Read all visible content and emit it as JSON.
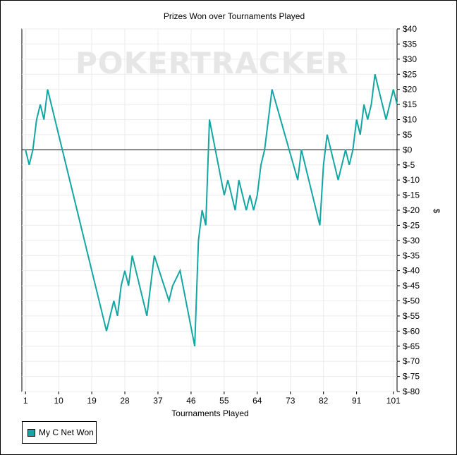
{
  "chart_data": {
    "type": "line",
    "title": "Prizes Won over Tournaments Played",
    "xlabel": "Tournaments Played",
    "ylabel": "$",
    "xlim": [
      0,
      102
    ],
    "ylim": [
      -80,
      40
    ],
    "grid": true,
    "legend_position": "bottom-left",
    "watermark": "POKERTRACKER",
    "x_ticks": [
      1,
      10,
      19,
      28,
      37,
      46,
      55,
      64,
      73,
      82,
      91,
      101
    ],
    "y_ticks": [
      40,
      35,
      30,
      25,
      20,
      15,
      10,
      5,
      0,
      -5,
      -10,
      -15,
      -20,
      -25,
      -30,
      -35,
      -40,
      -45,
      -50,
      -55,
      -60,
      -65,
      -70,
      -75,
      -80
    ],
    "y_tick_labels": [
      "$40",
      "$35",
      "$30",
      "$25",
      "$20",
      "$15",
      "$10",
      "$5",
      "$0",
      "$-5",
      "$-10",
      "$-15",
      "$-20",
      "$-25",
      "$-30",
      "$-35",
      "$-40",
      "$-45",
      "$-50",
      "$-55",
      "$-60",
      "$-65",
      "$-70",
      "$-75",
      "$-80"
    ],
    "series": [
      {
        "name": "My C Net Won",
        "color": "#13a6a3",
        "x": [
          1,
          2,
          3,
          4,
          5,
          6,
          7,
          23,
          25,
          26,
          27,
          28,
          29,
          30,
          34,
          36,
          40,
          41,
          43,
          47,
          48,
          49,
          50,
          51,
          55,
          56,
          58,
          59,
          61,
          62,
          63,
          64,
          65,
          66,
          67,
          68,
          75,
          76,
          81,
          82,
          83,
          86,
          88,
          89,
          90,
          91,
          92,
          93,
          94,
          95,
          96,
          99,
          101,
          102
        ],
        "y": [
          0,
          -5,
          0,
          10,
          15,
          10,
          20,
          -60,
          -50,
          -55,
          -45,
          -40,
          -45,
          -35,
          -55,
          -35,
          -50,
          -45,
          -40,
          -65,
          -30,
          -20,
          -25,
          10,
          -15,
          -10,
          -20,
          -10,
          -20,
          -15,
          -20,
          -15,
          -5,
          0,
          10,
          20,
          -10,
          0,
          -25,
          -5,
          5,
          -10,
          0,
          -5,
          0,
          10,
          5,
          15,
          10,
          15,
          25,
          10,
          20,
          15
        ]
      }
    ]
  }
}
